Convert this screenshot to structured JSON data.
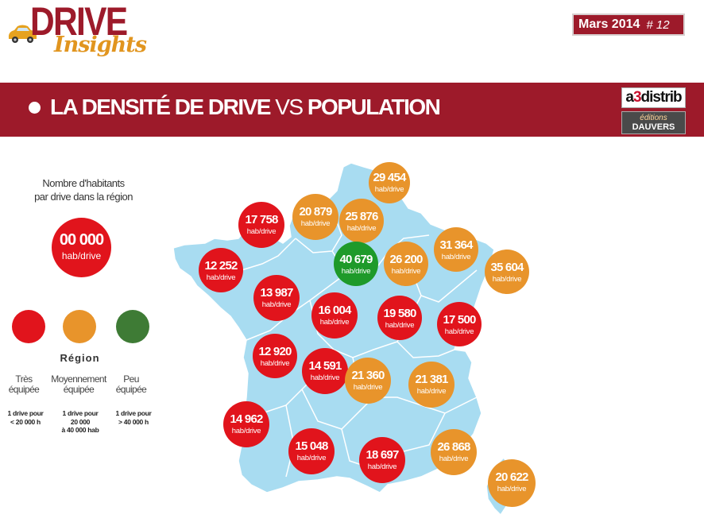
{
  "header": {
    "logo_top": "DRIVE",
    "logo_bottom": "Insights",
    "issue_date": "Mars 2014",
    "issue_number": "# 12"
  },
  "banner": {
    "title_bold": "LA DENSITÉ DE DRIVE",
    "title_light": " VS ",
    "title_bold2": "POPULATION"
  },
  "sponsors": {
    "a3_left": "a",
    "a3_digit": "3",
    "a3_right": "distrib",
    "dauvers_top": "éditions",
    "dauvers_bottom": "DAUVERS"
  },
  "legend": {
    "title_line1": "Nombre d'habitants",
    "title_line2": "par drive dans la région",
    "sample_value": "00 000",
    "sample_unit": "hab/drive",
    "region_label": "Région",
    "categories": [
      {
        "line1": "Très",
        "line2": "équipée",
        "desc1": "1 drive pour",
        "desc2": "< 20 000 h",
        "desc3": "",
        "color": "#e1141c"
      },
      {
        "line1": "Moyennement",
        "line2": "équipée",
        "desc1": "1 drive pour",
        "desc2": "20 000",
        "desc3": "à 40 000 hab",
        "color": "#e8942b"
      },
      {
        "line1": "Peu",
        "line2": "équipée",
        "desc1": "1 drive pour",
        "desc2": "> 40 000 h",
        "desc3": "",
        "color": "#3e7b35"
      }
    ]
  },
  "map": {
    "land_color": "#a8dcf1",
    "border_color": "#ffffff",
    "unit": "hab/drive",
    "regions": [
      {
        "value": "29 454",
        "level": "orange"
      },
      {
        "value": "17 758",
        "level": "red"
      },
      {
        "value": "20 879",
        "level": "orange"
      },
      {
        "value": "25 876",
        "level": "orange"
      },
      {
        "value": "31 364",
        "level": "orange"
      },
      {
        "value": "12 252",
        "level": "red"
      },
      {
        "value": "40 679",
        "level": "green"
      },
      {
        "value": "26 200",
        "level": "orange"
      },
      {
        "value": "35 604",
        "level": "orange"
      },
      {
        "value": "13 987",
        "level": "red"
      },
      {
        "value": "16 004",
        "level": "red"
      },
      {
        "value": "19 580",
        "level": "red"
      },
      {
        "value": "17 500",
        "level": "red"
      },
      {
        "value": "12 920",
        "level": "red"
      },
      {
        "value": "14 591",
        "level": "red"
      },
      {
        "value": "21 360",
        "level": "orange"
      },
      {
        "value": "21 381",
        "level": "orange"
      },
      {
        "value": "14 962",
        "level": "red"
      },
      {
        "value": "15 048",
        "level": "red"
      },
      {
        "value": "18 697",
        "level": "red"
      },
      {
        "value": "26 868",
        "level": "orange"
      },
      {
        "value": "20 622",
        "level": "orange"
      }
    ]
  }
}
